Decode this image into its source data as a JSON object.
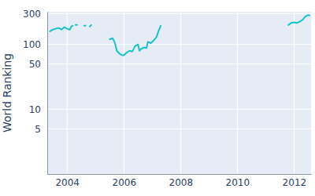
{
  "chart_data": {
    "type": "line",
    "y_label": "World Ranking",
    "x": [
      2003.4,
      2003.5,
      2003.6,
      2003.7,
      2003.8,
      2003.9,
      2004.0,
      2004.1,
      2004.15,
      2004.2,
      2004.25,
      2004.3,
      2004.35,
      2004.45,
      2004.6,
      2004.65,
      2004.72,
      2004.8,
      2004.85,
      2005.2,
      2005.5,
      2005.6,
      2005.65,
      2005.7,
      2005.75,
      2005.85,
      2005.95,
      2006.0,
      2006.1,
      2006.2,
      2006.3,
      2006.4,
      2006.5,
      2006.55,
      2006.6,
      2006.7,
      2006.8,
      2006.85,
      2006.95,
      2007.05,
      2007.15,
      2007.22,
      2007.3,
      2009.0,
      2011.8,
      2011.9,
      2012.0,
      2012.1,
      2012.2,
      2012.3,
      2012.4,
      2012.5,
      2012.55
    ],
    "values": [
      160,
      170,
      175,
      180,
      170,
      185,
      175,
      170,
      190,
      195,
      null,
      200,
      200,
      null,
      195,
      195,
      null,
      190,
      200,
      null,
      120,
      125,
      115,
      100,
      80,
      72,
      68,
      68,
      75,
      80,
      78,
      95,
      100,
      80,
      85,
      90,
      88,
      110,
      105,
      115,
      130,
      160,
      195,
      null,
      200,
      215,
      220,
      215,
      225,
      240,
      270,
      285,
      280
    ],
    "color": "#17c3c3",
    "xlim": [
      2003.3,
      2012.6
    ],
    "xticks": [
      2004,
      2006,
      2008,
      2010,
      2012
    ],
    "ylim": [
      1,
      320
    ],
    "yticks": [
      5,
      10,
      50,
      100,
      300
    ],
    "log": "y",
    "grid": true
  }
}
